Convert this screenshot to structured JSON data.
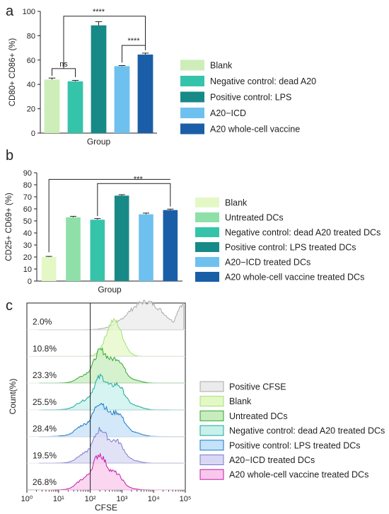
{
  "chart_data": [
    {
      "panel": "a",
      "type": "bar",
      "xlabel": "Group",
      "ylabel": "CD80+ CD86+ (%)",
      "ylim": [
        0,
        100
      ],
      "yticks": [
        0,
        20,
        40,
        60,
        80,
        100
      ],
      "categories": [
        "Blank",
        "Negative control: dead A20",
        "Positive control: LPS",
        "A20−ICD",
        "A20 whole-cell vaccine"
      ],
      "values": [
        44,
        42.5,
        88.5,
        55,
        64.5
      ],
      "errors": [
        1.2,
        0.8,
        3.0,
        0.5,
        1.2
      ],
      "colors": [
        "#cdeeb8",
        "#35c4aa",
        "#178a87",
        "#6ec1ee",
        "#1a5ea8"
      ],
      "legend_position": "right",
      "annotations": [
        {
          "label": "ns",
          "from": 0,
          "to": 1
        },
        {
          "label": "****",
          "from": 1,
          "to": 4
        },
        {
          "label": "****",
          "from": 3,
          "to": 4
        }
      ]
    },
    {
      "panel": "b",
      "type": "bar",
      "xlabel": "Group",
      "ylabel": "CD25+ CD69+ (%)",
      "ylim": [
        0,
        90
      ],
      "yticks": [
        0,
        10,
        20,
        30,
        40,
        50,
        60,
        70,
        80,
        90
      ],
      "categories": [
        "Blank",
        "Untreated DCs",
        "Negative control: dead A20 treated DCs",
        "Positive control: LPS treated DCs",
        "A20−ICD treated DCs",
        "A20 whole-cell vaccine treated DCs"
      ],
      "values": [
        20,
        53,
        51,
        71,
        55.5,
        59
      ],
      "errors": [
        0.5,
        0.8,
        1.0,
        0.8,
        1.0,
        0.8
      ],
      "colors": [
        "#e4f8c6",
        "#8ee0a8",
        "#35c4aa",
        "#178a87",
        "#6ec1ee",
        "#1a5ea8"
      ],
      "legend_position": "right",
      "annotations": [
        {
          "label": "***",
          "from": 0,
          "to": 5
        },
        {
          "label": "",
          "from": 2,
          "to": 5
        }
      ]
    },
    {
      "panel": "c",
      "type": "area",
      "xlabel": "CFSE",
      "ylabel": "Count(%)",
      "x_scale": "log",
      "xlim": [
        1,
        100000
      ],
      "xticks": [
        "10⁰",
        "10¹",
        "10²",
        "10³",
        "10⁴",
        "10⁵"
      ],
      "gate": 100,
      "legend_position": "right",
      "series": [
        {
          "name": "Positive CFSE",
          "percent": "2.0%",
          "fill": "#ebebeb",
          "stroke": "#aaaaaa"
        },
        {
          "name": "Blank",
          "percent": "10.8%",
          "fill": "#e4f8c6",
          "stroke": "#9ee07a"
        },
        {
          "name": "Untreated DCs",
          "percent": "23.3%",
          "fill": "#c8ecbe",
          "stroke": "#2ea82e"
        },
        {
          "name": "Negative control: dead A20 treated DCs",
          "percent": "25.5%",
          "fill": "#c8f0ec",
          "stroke": "#1aa89a"
        },
        {
          "name": "Positive control: LPS treated DCs",
          "percent": "28.4%",
          "fill": "#c4e2f8",
          "stroke": "#1a78c8"
        },
        {
          "name": "A20−ICD treated DCs",
          "percent": "19.5%",
          "fill": "#d8d8f4",
          "stroke": "#7a7ad0"
        },
        {
          "name": "A20 whole-cell vaccine treated DCs",
          "percent": "26.8%",
          "fill": "#f8c8ec",
          "stroke": "#c81aa8"
        }
      ]
    }
  ],
  "panel_labels": [
    "a",
    "b",
    "c"
  ]
}
